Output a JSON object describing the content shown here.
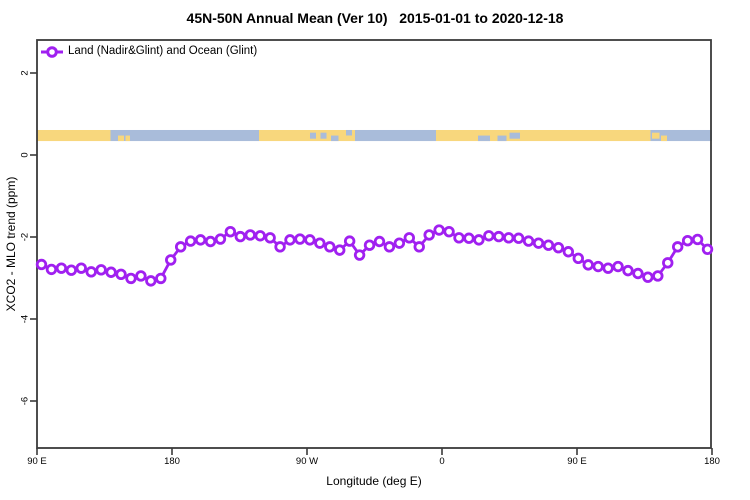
{
  "chart_data": {
    "type": "line",
    "title": "45N-50N Annual Mean (Ver 10)   2015-01-01 to 2020-12-18",
    "xlabel": "Longitude (deg E)",
    "ylabel": "XCO2 - MLO trend (ppm)",
    "legend": {
      "label": "Land (Nadir&Glint) and Ocean (Glint)",
      "position": "top-left",
      "marker": "open-circle-on-line"
    },
    "x_axis": {
      "note": "longitude wraps eastward: 90E -> 180 -> 90W -> 0 -> 90E -> 180 (450 deg span)",
      "ticks_deg": [
        90,
        180,
        270,
        360,
        450,
        540
      ],
      "tick_labels": [
        "90 E",
        "180",
        "90 W",
        "0",
        "90 E",
        "180"
      ],
      "range_deg": [
        90,
        540
      ],
      "grid": false
    },
    "y_axis": {
      "ticks": [
        2,
        0,
        -2,
        -4,
        -6
      ],
      "tick_labels": [
        "2",
        "0",
        "-2",
        "-4",
        "-6"
      ],
      "range": [
        -7.15,
        2.8
      ],
      "grid": false
    },
    "series": [
      {
        "name": "Land (Nadir&Glint) and Ocean (Glint)",
        "color": "#A020F0",
        "marker": "open-circle",
        "x_start_deg": 93,
        "x_step_deg": 6.627,
        "values": [
          -2.67,
          -2.79,
          -2.76,
          -2.81,
          -2.76,
          -2.85,
          -2.8,
          -2.86,
          -2.91,
          -3.01,
          -2.95,
          -3.07,
          -3.01,
          -2.56,
          -2.24,
          -2.1,
          -2.07,
          -2.11,
          -2.05,
          -1.87,
          -1.99,
          -1.95,
          -1.97,
          -2.02,
          -2.24,
          -2.07,
          -2.05,
          -2.07,
          -2.15,
          -2.24,
          -2.32,
          -2.1,
          -2.44,
          -2.2,
          -2.11,
          -2.24,
          -2.15,
          -2.02,
          -2.24,
          -1.95,
          -1.83,
          -1.87,
          -2.02,
          -2.03,
          -2.07,
          -1.97,
          -1.99,
          -2.02,
          -2.03,
          -2.1,
          -2.15,
          -2.2,
          -2.26,
          -2.36,
          -2.52,
          -2.68,
          -2.72,
          -2.76,
          -2.72,
          -2.82,
          -2.89,
          -2.98,
          -2.95,
          -2.63,
          -2.24,
          -2.09,
          -2.06,
          -2.3
        ]
      }
    ],
    "map_strip": {
      "description": "45N-50N latitude band land/ocean strip drawn across the plot near y=0.5",
      "y_range_value": [
        0.34,
        0.61
      ],
      "land_color": "#F8D77D",
      "ocean_color": "#A9BCDA",
      "segments": [
        {
          "from": 90,
          "to": 139,
          "type": "land",
          "region": "asia"
        },
        {
          "from": 139,
          "to": 238,
          "type": "ocean",
          "region": "pacific"
        },
        {
          "from": 238,
          "to": 302,
          "type": "land",
          "region": "north-america"
        },
        {
          "from": 302,
          "to": 356,
          "type": "ocean",
          "region": "atlantic"
        },
        {
          "from": 356,
          "to": 499,
          "type": "land",
          "region": "europe-asia"
        },
        {
          "from": 499,
          "to": 540,
          "type": "ocean",
          "region": "nw-pacific"
        }
      ],
      "details": [
        {
          "from": 144,
          "to": 148,
          "type": "land",
          "part": "bottom",
          "region": "sakhalin-japan"
        },
        {
          "from": 149,
          "to": 152,
          "type": "land",
          "part": "bottom",
          "region": "kuril-islands"
        },
        {
          "from": 272,
          "to": 276,
          "type": "ocean",
          "part": "middle",
          "region": "great-lakes-west"
        },
        {
          "from": 279,
          "to": 283,
          "type": "ocean",
          "part": "middle",
          "region": "great-lakes-east"
        },
        {
          "from": 286,
          "to": 291,
          "type": "ocean",
          "part": "bottom",
          "region": "st-lawrence"
        },
        {
          "from": 296,
          "to": 300,
          "type": "ocean",
          "part": "top",
          "region": "gulf-st-lawrence"
        },
        {
          "from": 384,
          "to": 392,
          "type": "ocean",
          "part": "bottom",
          "region": "black-sea"
        },
        {
          "from": 397,
          "to": 403,
          "type": "ocean",
          "part": "bottom",
          "region": "black-sea-east"
        },
        {
          "from": 405,
          "to": 412,
          "type": "ocean",
          "part": "middle",
          "region": "caspian-sea"
        },
        {
          "from": 500,
          "to": 505,
          "type": "land",
          "part": "middle",
          "region": "sakhalin"
        },
        {
          "from": 506,
          "to": 510,
          "type": "land",
          "part": "bottom",
          "region": "kuril-islands"
        }
      ]
    },
    "frame_color": "#3b3b3b"
  }
}
